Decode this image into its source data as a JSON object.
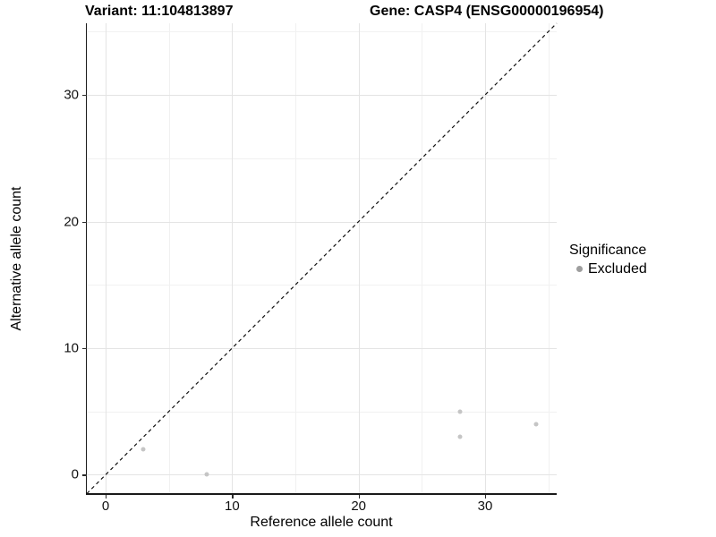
{
  "chart_data": {
    "type": "scatter",
    "title_left": "Variant: 11:104813897",
    "title_right": "Gene: CASP4 (ENSG00000196954)",
    "xlabel": "Reference allele count",
    "ylabel": "Alternative allele count",
    "x_ticks": [
      0,
      10,
      20,
      30
    ],
    "y_ticks": [
      0,
      10,
      20,
      30
    ],
    "x_minor_gridlines": [
      5,
      15,
      25,
      35
    ],
    "y_minor_gridlines": [
      5,
      15,
      25,
      35
    ],
    "xlim": [
      -1.49,
      35.66
    ],
    "ylim": [
      -1.49,
      35.66
    ],
    "grid": true,
    "identity_line": {
      "equation": "y = x",
      "style": "dashed",
      "color": "#111111"
    },
    "series": [
      {
        "name": "Excluded",
        "point_color": "#c5c5c5",
        "points": [
          {
            "x": 3,
            "y": 2
          },
          {
            "x": 8,
            "y": 0
          },
          {
            "x": 28,
            "y": 5
          },
          {
            "x": 28,
            "y": 3
          },
          {
            "x": 34,
            "y": 4
          }
        ]
      }
    ],
    "legend": {
      "title": "Significance",
      "position": "right",
      "items": [
        {
          "label": "Excluded",
          "color": "#9e9e9e"
        }
      ]
    }
  }
}
